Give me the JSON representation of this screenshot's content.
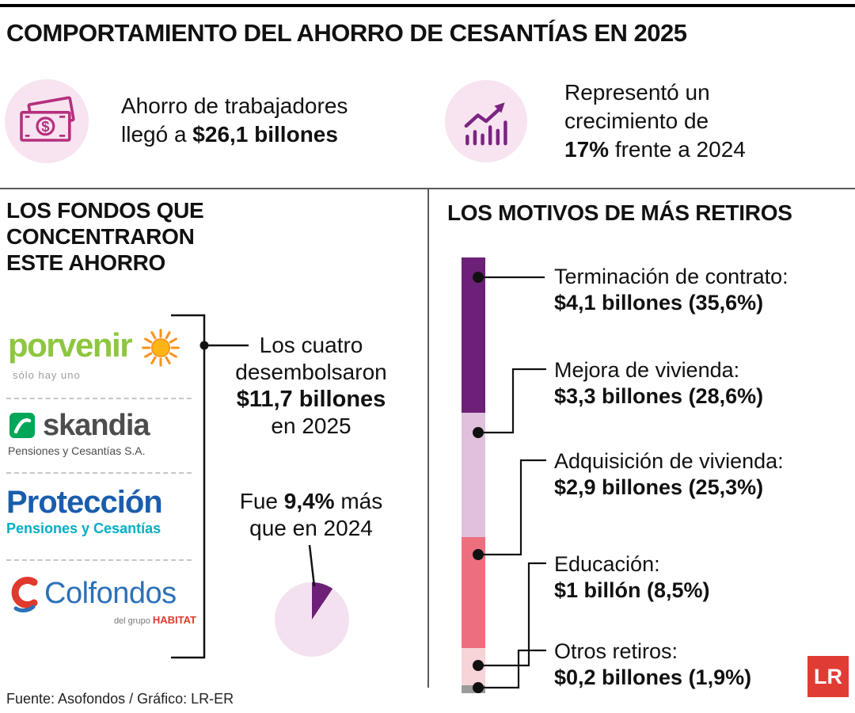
{
  "header": {
    "title": "COMPORTAMIENTO DEL AHORRO DE CESANTÍAS EN 2025"
  },
  "highlights": {
    "savings": {
      "icon": "money-bill-icon",
      "line1": "Ahorro de trabajadores",
      "line2_normal": "llegó a ",
      "line2_bold": "$26,1 billones"
    },
    "growth": {
      "icon": "growth-chart-icon",
      "line1": "Representó un",
      "line2": "crecimiento de",
      "line3_bold": "17%",
      "line3_normal": " frente a 2024"
    }
  },
  "funds_section": {
    "heading_lines": [
      "LOS FONDOS QUE",
      "CONCENTRARON",
      "ESTE AHORRO"
    ],
    "funds": [
      {
        "name": "porvenir",
        "tagline": "sólo hay uno"
      },
      {
        "name": "skandia",
        "tagline": "Pensiones y Cesantías S.A."
      },
      {
        "name": "Protección",
        "tagline": "Pensiones y Cesantías"
      },
      {
        "name": "Colfondos",
        "tagline_prefix": "del grupo ",
        "tagline_brand": "HABITAT"
      }
    ],
    "callout": {
      "line1": "Los cuatro",
      "line2": "desembolsaron",
      "line3_bold": "$11,7 billones",
      "line4": "en 2025"
    },
    "growth_note": {
      "prefix": "Fue ",
      "bold": "9,4%",
      "suffix": " más",
      "line2": "que en 2024"
    }
  },
  "withdrawals_section": {
    "heading": "LOS MOTIVOS DE MÁS RETIROS"
  },
  "footer": {
    "source": "Fuente: Asofondos / Gráfico: LR-ER",
    "logo": "LR"
  },
  "colors": {
    "accent_magenta": "#b5307d",
    "accent_purple": "#7b2482",
    "icon_circle_bg": "#f7e4f0",
    "lr_red": "#e13c34"
  },
  "chart_data": [
    {
      "type": "bar",
      "subtype": "stacked_vertical",
      "title": "LOS MOTIVOS DE MÁS RETIROS",
      "unit": "billones COP",
      "segments": [
        {
          "label": "Terminación de contrato:",
          "value_text": "$4,1 billones (35,6%)",
          "value": 4.1,
          "pct": 35.6,
          "color": "#6d2077"
        },
        {
          "label": "Mejora de vivienda:",
          "value_text": "$3,3 billones (28,6%)",
          "value": 3.3,
          "pct": 28.6,
          "color": "#dfc0dd"
        },
        {
          "label": "Adquisición de vivienda:",
          "value_text": "$2,9 billones (25,3%)",
          "value": 2.9,
          "pct": 25.3,
          "color": "#ed6f7d"
        },
        {
          "label": "Educación:",
          "value_text": "$1 billón (8,5%)",
          "value": 1.0,
          "pct": 8.5,
          "color": "#f7d4d7"
        },
        {
          "label": "Otros retiros:",
          "value_text": "$0,2 billones (1,9%)",
          "value": 0.2,
          "pct": 1.9,
          "color": "#9b9b9b"
        }
      ]
    },
    {
      "type": "pie",
      "title": "Fue 9,4% más que en 2024",
      "slices": [
        {
          "pct": 9.4,
          "color": "#6d2077"
        },
        {
          "pct": 90.6,
          "color": "#f3e1ef"
        }
      ]
    }
  ]
}
